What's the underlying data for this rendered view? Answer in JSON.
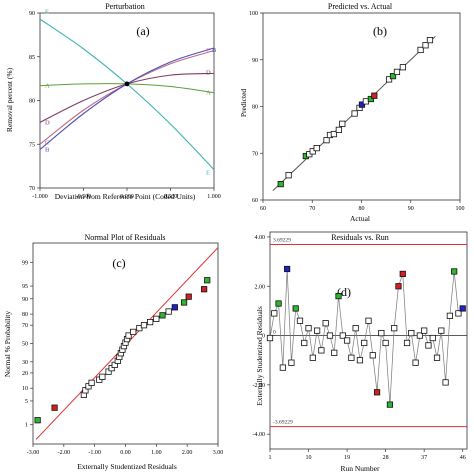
{
  "chart_data": [
    {
      "panel": "(a)",
      "type": "line",
      "title": "Perturbation",
      "xlabel": "Deviation from Reference Point (Coded Units)",
      "ylabel": "Removal percent (%)",
      "xlim": [
        -1,
        1
      ],
      "ylim": [
        70,
        90
      ],
      "xticks": [
        -1,
        -0.5,
        0,
        0.5,
        1
      ],
      "xtick_labels": [
        "-1.000",
        "-0.500",
        "0.000",
        "0.500",
        "1.000"
      ],
      "yticks": [
        70,
        75,
        80,
        85,
        90
      ],
      "ytick_labels": [
        "70",
        "75",
        "80",
        "85",
        "90"
      ],
      "reference_point": [
        0,
        81.9
      ],
      "series": [
        {
          "name": "E",
          "color": "#3fb4b4",
          "x": [
            -1,
            -0.5,
            0,
            0.5,
            1
          ],
          "values": [
            89.3,
            85.9,
            81.9,
            77.3,
            72.1
          ]
        },
        {
          "name": "A",
          "color": "#5a9e38",
          "x": [
            -1,
            -0.5,
            0,
            0.5,
            1
          ],
          "values": [
            81.7,
            81.9,
            81.9,
            81.6,
            80.9
          ]
        },
        {
          "name": "D",
          "color": "#7d3b66",
          "x": [
            -1,
            -0.5,
            0,
            0.5,
            1
          ],
          "values": [
            77.5,
            80.0,
            81.9,
            82.9,
            83.1
          ]
        },
        {
          "name": "C",
          "color": "#c26a86",
          "x": [
            -1,
            -0.5,
            0,
            0.5,
            1
          ],
          "values": [
            75.0,
            78.9,
            81.9,
            84.2,
            85.7
          ]
        },
        {
          "name": "B",
          "color": "#4c4fb8",
          "x": [
            -1,
            -0.5,
            0,
            0.5,
            1
          ],
          "values": [
            74.4,
            78.5,
            81.9,
            84.4,
            86.0
          ]
        }
      ],
      "left_labels": [
        {
          "text": "E",
          "x": -1,
          "y": 90.2,
          "color": "#3fb4b4"
        },
        {
          "text": "A",
          "x": -1,
          "y": 81.7,
          "color": "#5a9e38"
        },
        {
          "text": "D",
          "x": -1,
          "y": 77.5,
          "color": "#7d3b66"
        },
        {
          "text": "C",
          "x": -1,
          "y": 75.2,
          "color": "#c26a86"
        },
        {
          "text": "B",
          "x": -1,
          "y": 74.4,
          "color": "#4c4fb8"
        }
      ],
      "right_labels": [
        {
          "text": "C",
          "x": 1,
          "y": 85.8,
          "color": "#c26a86"
        },
        {
          "text": "B",
          "x": 1,
          "y": 85.8,
          "color": "#4c4fb8"
        },
        {
          "text": "D",
          "x": 1,
          "y": 83.2,
          "color": "#7d3b66"
        },
        {
          "text": "A",
          "x": 1,
          "y": 80.9,
          "color": "#5a9e38"
        },
        {
          "text": "E",
          "x": 1,
          "y": 71.8,
          "color": "#3fb4b4"
        }
      ]
    },
    {
      "panel": "(b)",
      "type": "scatter",
      "title": "Predicted vs. Actual",
      "xlabel": "Actual",
      "ylabel": "Predicted",
      "xlim": [
        60,
        100
      ],
      "ylim": [
        60,
        100
      ],
      "xticks": [
        60,
        70,
        80,
        90,
        100
      ],
      "xtick_labels": [
        "60",
        "70",
        "80",
        "90",
        "100"
      ],
      "yticks": [
        60,
        70,
        80,
        90,
        100
      ],
      "ytick_labels": [
        "60",
        "70",
        "80",
        "90",
        "100"
      ],
      "reference_line": {
        "from": [
          62,
          62
        ],
        "to": [
          95,
          95
        ],
        "color": "#555555"
      },
      "points": [
        {
          "x": 63.6,
          "y": 63.4,
          "color": "#2fb52f"
        },
        {
          "x": 65.2,
          "y": 65.3,
          "color": "#ffffff"
        },
        {
          "x": 68.7,
          "y": 69.4,
          "color": "#2fb52f"
        },
        {
          "x": 69.4,
          "y": 69.8,
          "color": "#ffffff"
        },
        {
          "x": 70.1,
          "y": 70.4,
          "color": "#ffffff"
        },
        {
          "x": 70.9,
          "y": 71.1,
          "color": "#ffffff"
        },
        {
          "x": 72.9,
          "y": 72.8,
          "color": "#ffffff"
        },
        {
          "x": 73.6,
          "y": 73.9,
          "color": "#ffffff"
        },
        {
          "x": 74.4,
          "y": 74.1,
          "color": "#ffffff"
        },
        {
          "x": 75.4,
          "y": 75.0,
          "color": "#ffffff"
        },
        {
          "x": 76.1,
          "y": 76.3,
          "color": "#ffffff"
        },
        {
          "x": 78.6,
          "y": 78.5,
          "color": "#ffffff"
        },
        {
          "x": 79.6,
          "y": 79.7,
          "color": "#ffffff"
        },
        {
          "x": 80.1,
          "y": 80.4,
          "color": "#2020cc"
        },
        {
          "x": 80.9,
          "y": 81.1,
          "color": "#ffffff"
        },
        {
          "x": 81.9,
          "y": 81.6,
          "color": "#2fb52f"
        },
        {
          "x": 82.6,
          "y": 82.3,
          "color": "#d02020"
        },
        {
          "x": 85.6,
          "y": 85.8,
          "color": "#ffffff"
        },
        {
          "x": 86.4,
          "y": 86.5,
          "color": "#2fb52f"
        },
        {
          "x": 87.2,
          "y": 87.4,
          "color": "#ffffff"
        },
        {
          "x": 88.4,
          "y": 88.4,
          "color": "#ffffff"
        },
        {
          "x": 92.0,
          "y": 92.1,
          "color": "#ffffff"
        },
        {
          "x": 93.0,
          "y": 93.1,
          "color": "#ffffff"
        },
        {
          "x": 93.9,
          "y": 94.2,
          "color": "#ffffff"
        }
      ]
    },
    {
      "panel": "(c)",
      "type": "scatter",
      "title": "Normal Plot of Residuals",
      "xlabel": "Externally Studentized Residuals",
      "ylabel": "Normal % Probability",
      "xlim": [
        -3,
        3
      ],
      "xticks": [
        -3,
        -2,
        -1,
        0,
        1,
        2,
        3
      ],
      "xtick_labels": [
        "-3.00",
        "-2.00",
        "-1.00",
        "0.00",
        "1.00",
        "2.00",
        "3.00"
      ],
      "y_scale": "normal probability",
      "yticks": [
        1,
        5,
        10,
        20,
        30,
        50,
        70,
        80,
        90,
        95,
        99
      ],
      "ytick_labels": [
        "1",
        "5",
        "10",
        "20",
        "30",
        "50",
        "70",
        "80",
        "90",
        "95",
        "99"
      ],
      "reference_line": {
        "from": [
          -2.9,
          0.3
        ],
        "to": [
          3.0,
          99.7
        ],
        "color": "#e03030"
      },
      "points": [
        {
          "x": -2.85,
          "y": 1.4,
          "color": "#2fb52f"
        },
        {
          "x": -2.3,
          "y": 3.3,
          "color": "#d02020"
        },
        {
          "x": -1.35,
          "y": 7.1,
          "color": "#ffffff"
        },
        {
          "x": -1.3,
          "y": 9.0,
          "color": "#ffffff"
        },
        {
          "x": -1.2,
          "y": 11.0,
          "color": "#ffffff"
        },
        {
          "x": -1.1,
          "y": 13.0,
          "color": "#ffffff"
        },
        {
          "x": -0.85,
          "y": 15.0,
          "color": "#ffffff"
        },
        {
          "x": -0.75,
          "y": 17.0,
          "color": "#ffffff"
        },
        {
          "x": -0.55,
          "y": 21.0,
          "color": "#ffffff"
        },
        {
          "x": -0.45,
          "y": 24.0,
          "color": "#ffffff"
        },
        {
          "x": -0.35,
          "y": 27.0,
          "color": "#ffffff"
        },
        {
          "x": -0.25,
          "y": 31.0,
          "color": "#ffffff"
        },
        {
          "x": -0.2,
          "y": 35.0,
          "color": "#ffffff"
        },
        {
          "x": -0.15,
          "y": 39.0,
          "color": "#ffffff"
        },
        {
          "x": -0.1,
          "y": 43.0,
          "color": "#ffffff"
        },
        {
          "x": -0.05,
          "y": 47.0,
          "color": "#ffffff"
        },
        {
          "x": 0.0,
          "y": 51.0,
          "color": "#ffffff"
        },
        {
          "x": 0.05,
          "y": 55.0,
          "color": "#ffffff"
        },
        {
          "x": 0.1,
          "y": 59.0,
          "color": "#ffffff"
        },
        {
          "x": 0.25,
          "y": 63.0,
          "color": "#ffffff"
        },
        {
          "x": 0.45,
          "y": 67.0,
          "color": "#ffffff"
        },
        {
          "x": 0.6,
          "y": 70.0,
          "color": "#ffffff"
        },
        {
          "x": 0.8,
          "y": 73.0,
          "color": "#ffffff"
        },
        {
          "x": 1.0,
          "y": 76.0,
          "color": "#ffffff"
        },
        {
          "x": 1.2,
          "y": 79.0,
          "color": "#2fb52f"
        },
        {
          "x": 1.4,
          "y": 82.0,
          "color": "#ffffff"
        },
        {
          "x": 1.6,
          "y": 85.0,
          "color": "#2020cc"
        },
        {
          "x": 1.9,
          "y": 88.0,
          "color": "#2fb52f"
        },
        {
          "x": 2.05,
          "y": 91.0,
          "color": "#d02020"
        },
        {
          "x": 2.55,
          "y": 94.0,
          "color": "#d02020"
        },
        {
          "x": 2.65,
          "y": 96.5,
          "color": "#2fb52f"
        }
      ]
    },
    {
      "panel": "(d)",
      "type": "line",
      "title": "Residuals vs. Run",
      "xlabel": "Run Number",
      "ylabel": "Externally Studentized Residuals",
      "xlim": [
        1,
        47
      ],
      "ylim": [
        -4.6,
        4.2
      ],
      "xticks": [
        1,
        10,
        19,
        28,
        37,
        46
      ],
      "xtick_labels": [
        "1",
        "10",
        "19",
        "28",
        "37",
        "46"
      ],
      "yticks": [
        4,
        2,
        0,
        -2,
        -4
      ],
      "ytick_labels": [
        "4.00",
        "2.00",
        "0",
        "-2.00",
        "-4.00"
      ],
      "limit_lines": [
        {
          "label": "3.69229",
          "y": 3.69229,
          "color": "#e03030"
        },
        {
          "label": "-3.69229",
          "y": -3.69229,
          "color": "#e03030"
        }
      ],
      "zero_line": {
        "label": "0",
        "y": 0
      },
      "runs": [
        1,
        2,
        3,
        4,
        5,
        6,
        7,
        8,
        9,
        10,
        11,
        12,
        13,
        14,
        15,
        16,
        17,
        18,
        19,
        20,
        21,
        22,
        23,
        24,
        25,
        26,
        27,
        28,
        29,
        30,
        31,
        32,
        33,
        34,
        35,
        36,
        37,
        38,
        39,
        40,
        41,
        42,
        43,
        44,
        45,
        46
      ],
      "values": [
        -0.1,
        0.9,
        1.3,
        -1.3,
        2.7,
        -1.1,
        1.1,
        0.6,
        -0.3,
        0.3,
        -0.9,
        0.2,
        -0.6,
        0.5,
        0.0,
        -0.7,
        1.6,
        0.0,
        -0.2,
        -0.9,
        0.3,
        -1.0,
        -0.3,
        0.6,
        -0.8,
        -2.3,
        0.1,
        -0.3,
        -2.8,
        0.3,
        2.0,
        2.5,
        -0.3,
        0.1,
        -1.1,
        0.0,
        0.2,
        -0.4,
        -0.1,
        -0.9,
        0.2,
        -1.9,
        0.8,
        2.6,
        0.9,
        1.1
      ],
      "point_colors": [
        "#ffffff",
        "#ffffff",
        "#2fb52f",
        "#ffffff",
        "#2020cc",
        "#ffffff",
        "#2fb52f",
        "#ffffff",
        "#ffffff",
        "#ffffff",
        "#ffffff",
        "#ffffff",
        "#ffffff",
        "#ffffff",
        "#ffffff",
        "#ffffff",
        "#2fb52f",
        "#ffffff",
        "#ffffff",
        "#ffffff",
        "#ffffff",
        "#ffffff",
        "#ffffff",
        "#ffffff",
        "#ffffff",
        "#d02020",
        "#ffffff",
        "#ffffff",
        "#2fb52f",
        "#ffffff",
        "#d02020",
        "#d02020",
        "#ffffff",
        "#ffffff",
        "#ffffff",
        "#ffffff",
        "#ffffff",
        "#ffffff",
        "#ffffff",
        "#ffffff",
        "#ffffff",
        "#ffffff",
        "#ffffff",
        "#2fb52f",
        "#ffffff",
        "#2020cc"
      ]
    }
  ]
}
